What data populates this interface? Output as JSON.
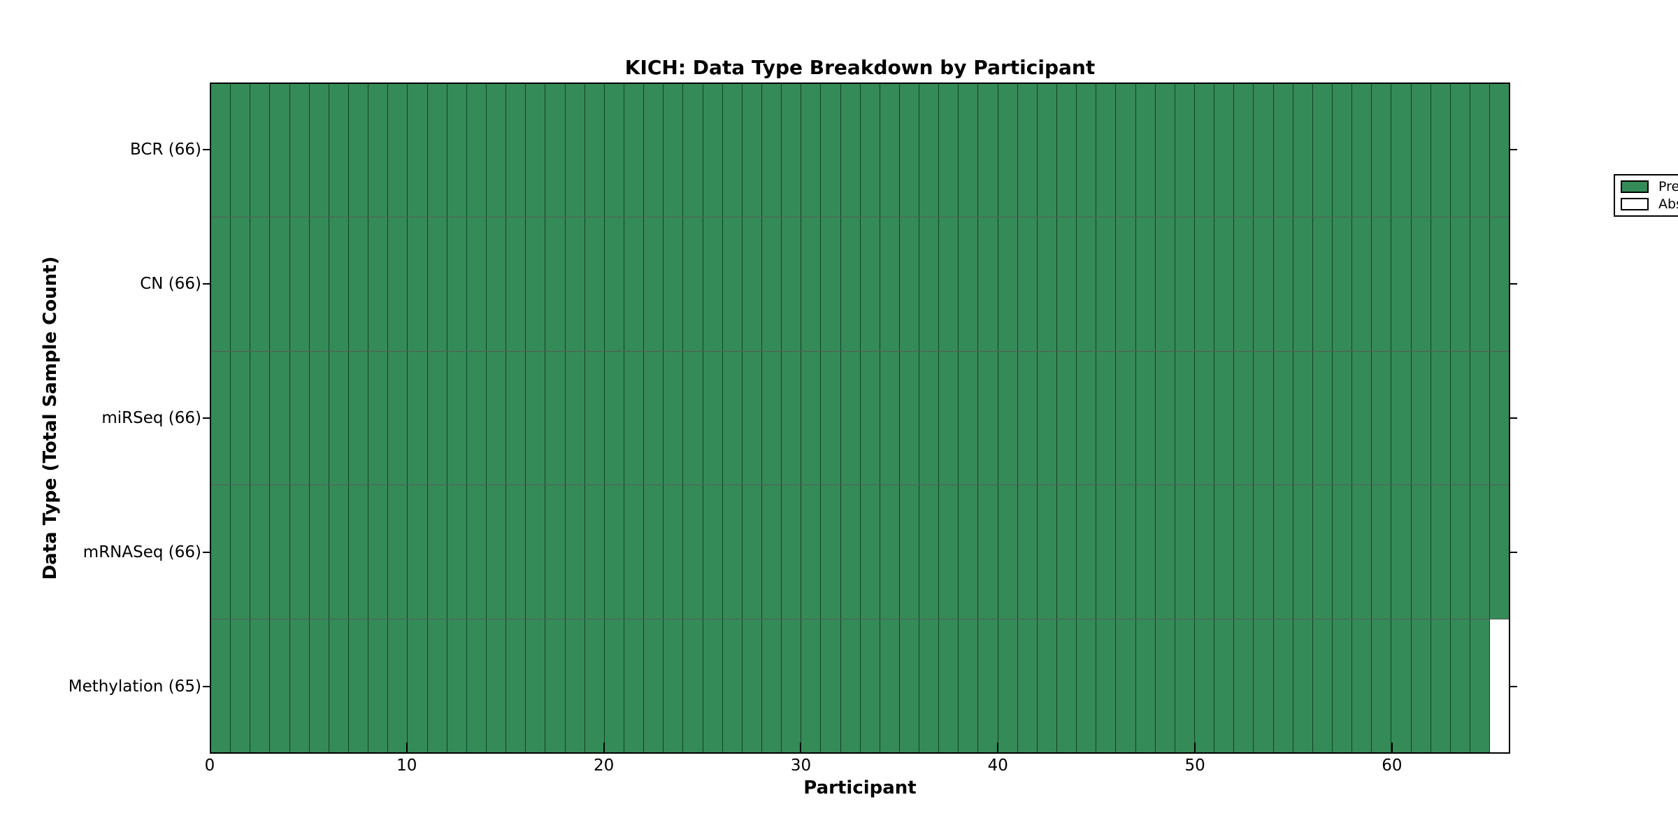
{
  "title": "KICH: Data Type Breakdown by Participant",
  "axes": {
    "xlabel": "Participant",
    "ylabel": "Data Type (Total Sample Count)"
  },
  "legend": {
    "items": [
      {
        "label": "Present",
        "color": "#348b57"
      },
      {
        "label": "Absent",
        "color": "#ffffff"
      }
    ]
  },
  "chart_data": {
    "type": "heatmap",
    "title": "KICH: Data Type Breakdown by Participant",
    "xlabel": "Participant",
    "ylabel": "Data Type (Total Sample Count)",
    "n_participants": 66,
    "xlim": [
      0,
      66
    ],
    "x_ticks": [
      0,
      10,
      20,
      30,
      40,
      50,
      60
    ],
    "rows": [
      {
        "label": "BCR (66)",
        "data_type": "BCR",
        "total_samples": 66,
        "present_count": 66,
        "absent_count": 0,
        "absent_participant_indexes": []
      },
      {
        "label": "CN (66)",
        "data_type": "CN",
        "total_samples": 66,
        "present_count": 66,
        "absent_count": 0,
        "absent_participant_indexes": []
      },
      {
        "label": "miRSeq (66)",
        "data_type": "miRSeq",
        "total_samples": 66,
        "present_count": 66,
        "absent_count": 0,
        "absent_participant_indexes": []
      },
      {
        "label": "mRNASeq (66)",
        "data_type": "mRNASeq",
        "total_samples": 66,
        "present_count": 66,
        "absent_count": 0,
        "absent_participant_indexes": []
      },
      {
        "label": "Methylation (65)",
        "data_type": "Methylation",
        "total_samples": 65,
        "present_count": 65,
        "absent_count": 1,
        "absent_participant_indexes": [
          65
        ]
      }
    ],
    "colors": {
      "present": "#348b57",
      "absent": "#ffffff",
      "cell_border": "rgba(0,0,0,0.55)"
    },
    "legend_entries": [
      "Present",
      "Absent"
    ],
    "legend_position": "upper right",
    "grid": "per-cell borders"
  }
}
